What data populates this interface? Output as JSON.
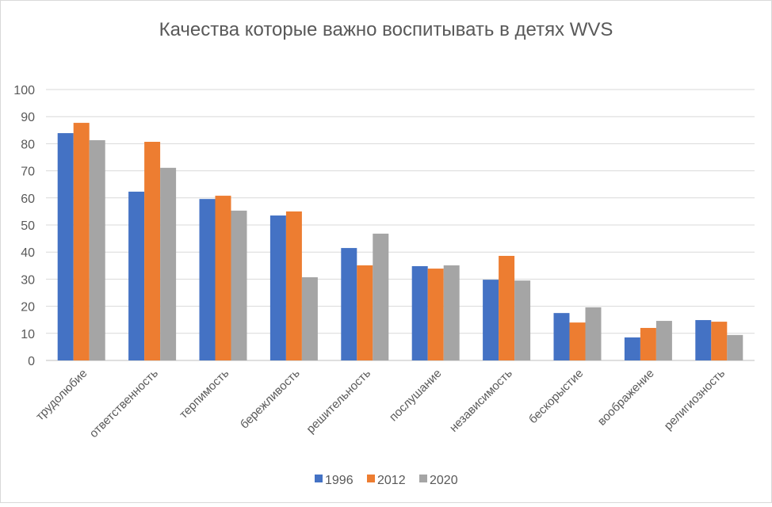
{
  "chart_data": {
    "type": "bar",
    "title": "Качества которые важно воспитывать в детях WVS",
    "xlabel": "",
    "ylabel": "",
    "ylim": [
      0,
      100
    ],
    "yticks": [
      0,
      10,
      20,
      30,
      40,
      50,
      60,
      70,
      80,
      90,
      100
    ],
    "grid": true,
    "legend_position": "bottom",
    "categories": [
      "трудолюбие",
      "ответственность",
      "терпимость",
      "бережливость",
      "решительность",
      "послушание",
      "независимость",
      "бескорыстие",
      "воображение",
      "религиозность"
    ],
    "series": [
      {
        "name": "1996",
        "color": "#4472C4",
        "values": [
          83.9,
          62.3,
          59.6,
          53.5,
          41.5,
          34.8,
          29.8,
          17.5,
          8.5,
          14.9
        ]
      },
      {
        "name": "2012",
        "color": "#ED7D31",
        "values": [
          87.7,
          80.7,
          60.8,
          55.0,
          35.1,
          33.9,
          38.6,
          14.0,
          12.0,
          14.3
        ]
      },
      {
        "name": "2020",
        "color": "#A5A5A5",
        "values": [
          81.3,
          71.1,
          55.3,
          30.7,
          46.8,
          35.1,
          29.5,
          19.6,
          14.6,
          9.4
        ]
      }
    ]
  }
}
